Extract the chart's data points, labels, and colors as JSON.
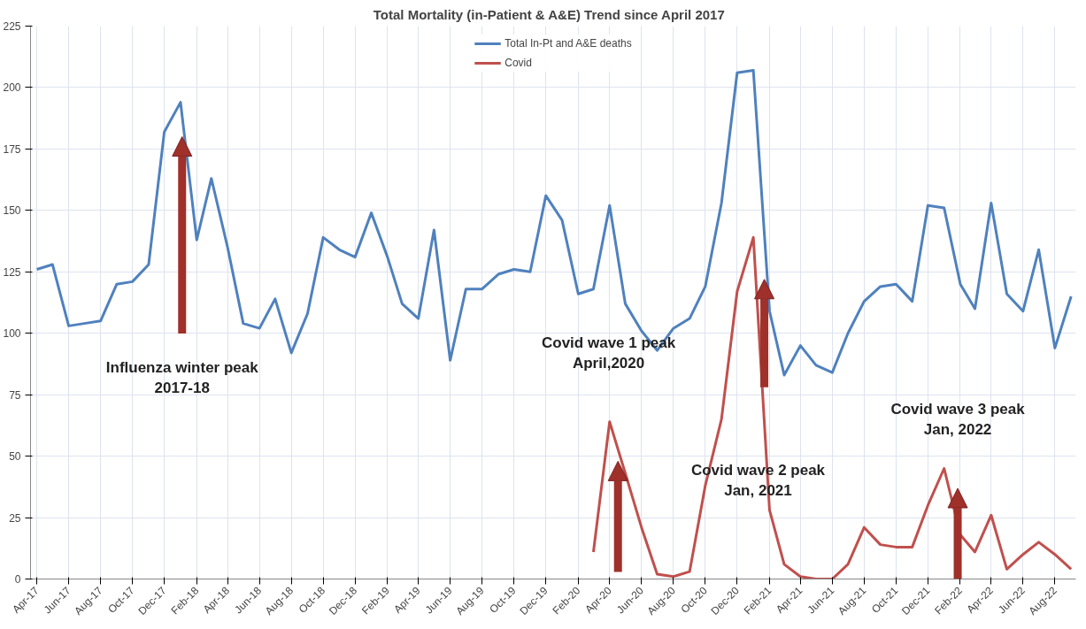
{
  "chart_data": {
    "type": "line",
    "title": "Total Mortality  (in-Patient & A&E) Trend since April  2017",
    "x": [
      "2017-04",
      "2017-05",
      "2017-06",
      "2017-07",
      "2017-08",
      "2017-09",
      "2017-10",
      "2017-11",
      "2017-12",
      "2018-01",
      "2018-02",
      "2018-03",
      "2018-04",
      "2018-05",
      "2018-06",
      "2018-07",
      "2018-08",
      "2018-09",
      "2018-10",
      "2018-11",
      "2018-12",
      "2019-01",
      "2019-02",
      "2019-03",
      "2019-04",
      "2019-05",
      "2019-06",
      "2019-07",
      "2019-08",
      "2019-09",
      "2019-10",
      "2019-11",
      "2019-12",
      "2020-01",
      "2020-02",
      "2020-03",
      "2020-04",
      "2020-05",
      "2020-06",
      "2020-07",
      "2020-08",
      "2020-09",
      "2020-10",
      "2020-11",
      "2020-12",
      "2021-01",
      "2021-02",
      "2021-03",
      "2021-04",
      "2021-05",
      "2021-06",
      "2021-07",
      "2021-08",
      "2021-09",
      "2021-10",
      "2021-11",
      "2021-12",
      "2022-01",
      "2022-02",
      "2022-03",
      "2022-04",
      "2022-05",
      "2022-06",
      "2022-07",
      "2022-08",
      "2022-09"
    ],
    "series": [
      {
        "name": "Total In-Pt and A&E deaths",
        "color": "#4f81bd",
        "values": [
          126,
          128,
          103,
          104,
          105,
          120,
          121,
          128,
          182,
          194,
          138,
          163,
          135,
          104,
          102,
          114,
          92,
          108,
          139,
          134,
          131,
          149,
          131,
          112,
          106,
          142,
          89,
          118,
          118,
          124,
          126,
          125,
          156,
          146,
          116,
          118,
          152,
          112,
          101,
          93,
          102,
          106,
          119,
          153,
          206,
          207,
          109,
          83,
          95,
          87,
          84,
          100,
          113,
          119,
          120,
          113,
          152,
          151,
          120,
          110,
          153,
          116,
          109,
          134,
          94,
          115
        ]
      },
      {
        "name": "Covid",
        "color": "#c0504d",
        "values": [
          null,
          null,
          null,
          null,
          null,
          null,
          null,
          null,
          null,
          null,
          null,
          null,
          null,
          null,
          null,
          null,
          null,
          null,
          null,
          null,
          null,
          null,
          null,
          null,
          null,
          null,
          null,
          null,
          null,
          null,
          null,
          null,
          null,
          null,
          null,
          11,
          64,
          43,
          21,
          2,
          1,
          3,
          38,
          65,
          117,
          139,
          28,
          6,
          1,
          0,
          0,
          6,
          21,
          14,
          13,
          13,
          30,
          45,
          18,
          11,
          26,
          4,
          10,
          15,
          10,
          4
        ]
      }
    ],
    "xlim": [
      "2017-03-20",
      "2022-09-10"
    ],
    "xticks": [
      {
        "value": "2017-04",
        "label": "Apr-17"
      },
      {
        "value": "2017-06",
        "label": "Jun-17"
      },
      {
        "value": "2017-08",
        "label": "Aug-17"
      },
      {
        "value": "2017-10",
        "label": "Oct-17"
      },
      {
        "value": "2017-12",
        "label": "Dec-17"
      },
      {
        "value": "2018-02",
        "label": "Feb-18"
      },
      {
        "value": "2018-04",
        "label": "Apr-18"
      },
      {
        "value": "2018-06",
        "label": "Jun-18"
      },
      {
        "value": "2018-08",
        "label": "Aug-18"
      },
      {
        "value": "2018-10",
        "label": "Oct-18"
      },
      {
        "value": "2018-12",
        "label": "Dec-18"
      },
      {
        "value": "2019-02",
        "label": "Feb-19"
      },
      {
        "value": "2019-04",
        "label": "Apr-19"
      },
      {
        "value": "2019-06",
        "label": "Jun-19"
      },
      {
        "value": "2019-08",
        "label": "Aug-19"
      },
      {
        "value": "2019-10",
        "label": "Oct-19"
      },
      {
        "value": "2019-12",
        "label": "Dec-19"
      },
      {
        "value": "2020-02",
        "label": "Feb-20"
      },
      {
        "value": "2020-04",
        "label": "Apr-20"
      },
      {
        "value": "2020-06",
        "label": "Jun-20"
      },
      {
        "value": "2020-08",
        "label": "Aug-20"
      },
      {
        "value": "2020-10",
        "label": "Oct-20"
      },
      {
        "value": "2020-12",
        "label": "Dec-20"
      },
      {
        "value": "2021-02",
        "label": "Feb-21"
      },
      {
        "value": "2021-04",
        "label": "Apr-21"
      },
      {
        "value": "2021-06",
        "label": "Jun-21"
      },
      {
        "value": "2021-08",
        "label": "Aug-21"
      },
      {
        "value": "2021-10",
        "label": "Oct-21"
      },
      {
        "value": "2021-12",
        "label": "Dec-21"
      },
      {
        "value": "2022-02",
        "label": "Feb-22"
      },
      {
        "value": "2022-04",
        "label": "Apr-22"
      },
      {
        "value": "2022-06",
        "label": "Jun-22"
      },
      {
        "value": "2022-08",
        "label": "Aug-22"
      }
    ],
    "ylim": [
      0,
      225
    ],
    "yticks": [
      0,
      25,
      50,
      75,
      100,
      125,
      150,
      175,
      200,
      225
    ],
    "grid": true,
    "legend": "top",
    "marker": "none",
    "line_style": "solid",
    "annotations": [
      "Influenza winter peak\n2017-18",
      "Covid wave 1 peak\nApril,2020",
      "Covid wave 2 peak\nJan, 2021",
      "Covid wave 3 peak\nJan, 2022"
    ]
  }
}
